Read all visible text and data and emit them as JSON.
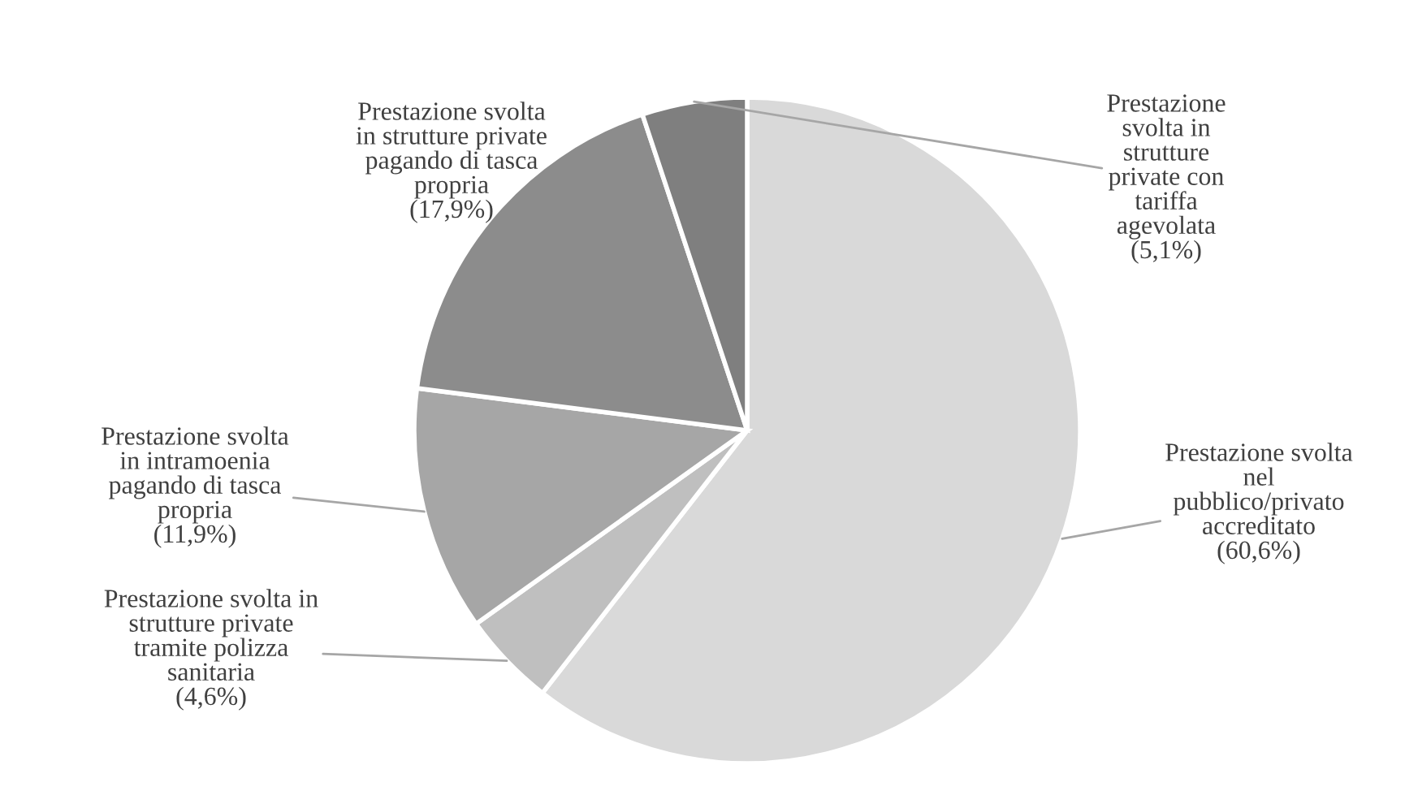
{
  "chart_data": {
    "type": "pie",
    "categories": [
      "Prestazione svolta\nnel\npubblico/privato\naccreditato",
      "Prestazione svolta in\nstrutture private\ntramite polizza\nsanitaria",
      "Prestazione svolta\nin intramoenia\npagando di tasca\npropria",
      "Prestazione svolta\nin strutture private\npagando di tasca\npropria",
      "Prestazione\nsvolta in\nstrutture\nprivate con\ntariffa\nagevolata"
    ],
    "values": [
      60.6,
      4.6,
      11.9,
      17.9,
      5.1
    ],
    "value_labels": [
      "(60,6%)",
      "(4,6%)",
      "(11,9%)",
      "(17,9%)",
      "(5,1%)"
    ],
    "colors": [
      "#d9d9d9",
      "#bfbfbf",
      "#a6a6a6",
      "#8c8c8c",
      "#7f7f7f"
    ]
  }
}
